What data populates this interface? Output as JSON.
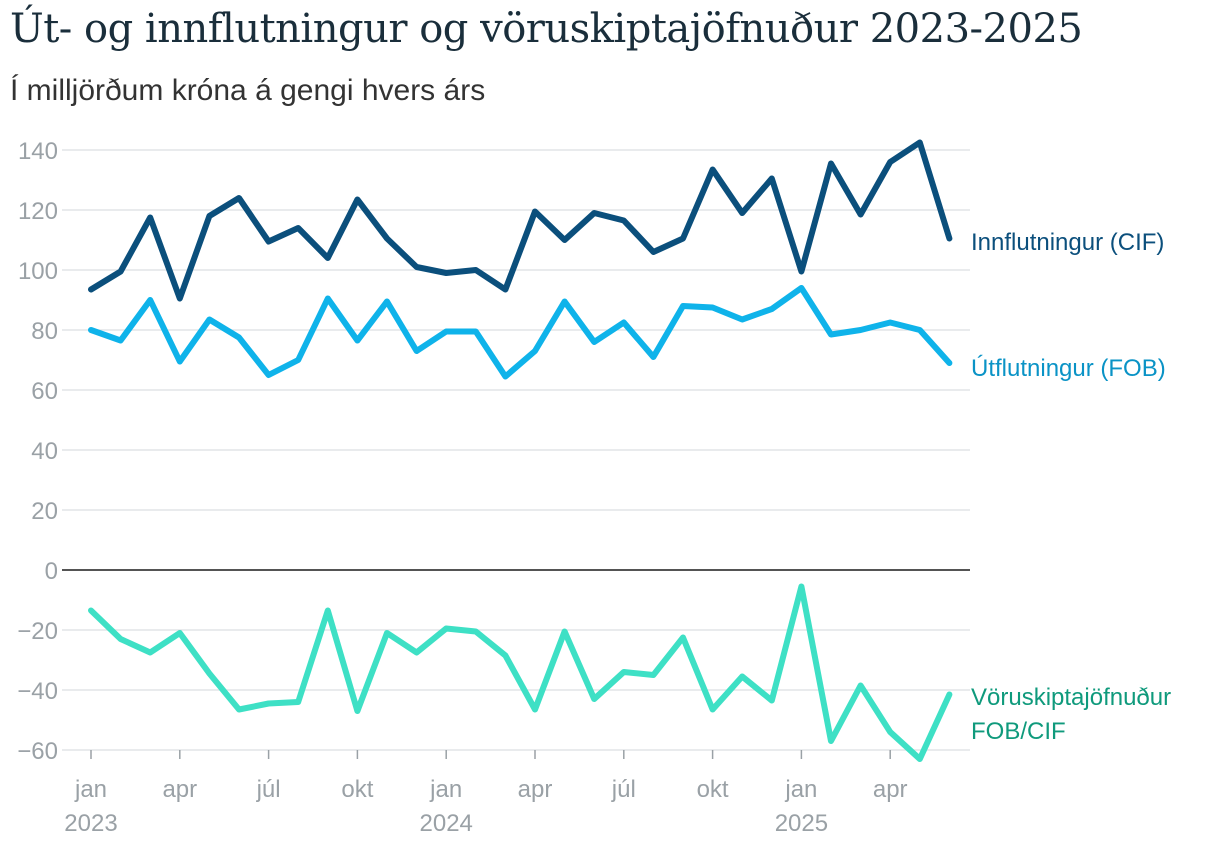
{
  "title": "Út- og innflutningur og vöruskiptajöfnuður 2023-2025",
  "subtitle": "Í milljörðum króna á gengi hvers árs",
  "chart_data": {
    "type": "line",
    "title": "Út- og innflutningur og vöruskiptajöfnuður 2023-2025",
    "subtitle": "Í milljörðum króna á gengi hvers árs",
    "xlabel": "",
    "ylabel": "",
    "ylim": [
      -60,
      140
    ],
    "y_ticks": [
      140,
      120,
      100,
      80,
      60,
      40,
      20,
      0,
      -20,
      -40,
      -60
    ],
    "grid": true,
    "x": [
      "2023-01",
      "2023-02",
      "2023-03",
      "2023-04",
      "2023-05",
      "2023-06",
      "2023-07",
      "2023-08",
      "2023-09",
      "2023-10",
      "2023-11",
      "2023-12",
      "2024-01",
      "2024-02",
      "2024-03",
      "2024-04",
      "2024-05",
      "2024-06",
      "2024-07",
      "2024-08",
      "2024-09",
      "2024-10",
      "2024-11",
      "2024-12",
      "2025-01",
      "2025-02",
      "2025-03",
      "2025-04",
      "2025-05",
      "2025-06"
    ],
    "x_ticks": [
      {
        "index": 0,
        "label": "jan",
        "year": "2023"
      },
      {
        "index": 3,
        "label": "apr",
        "year": ""
      },
      {
        "index": 6,
        "label": "júl",
        "year": ""
      },
      {
        "index": 9,
        "label": "okt",
        "year": ""
      },
      {
        "index": 12,
        "label": "jan",
        "year": "2024"
      },
      {
        "index": 15,
        "label": "apr",
        "year": ""
      },
      {
        "index": 18,
        "label": "júl",
        "year": ""
      },
      {
        "index": 21,
        "label": "okt",
        "year": ""
      },
      {
        "index": 24,
        "label": "jan",
        "year": "2025"
      },
      {
        "index": 27,
        "label": "apr",
        "year": ""
      }
    ],
    "series": [
      {
        "name": "Innflutningur (CIF)",
        "color": "#0b4f7c",
        "label_color": "#0b4f7c",
        "values": [
          93.5,
          99.5,
          117.5,
          90.5,
          118,
          124,
          109.5,
          114,
          104,
          123.5,
          110.5,
          101,
          99,
          100,
          93.5,
          119.5,
          110,
          119,
          116.5,
          106,
          110.5,
          133.5,
          119,
          130.5,
          99.5,
          135.5,
          118.5,
          136,
          142.5,
          110.5
        ]
      },
      {
        "name": "Útflutningur (FOB)",
        "color": "#0fb3ea",
        "label_color": "#0a93c6",
        "values": [
          80,
          76.5,
          90,
          69.5,
          83.5,
          77.5,
          65,
          70,
          90.5,
          76.5,
          89.5,
          73,
          79.5,
          79.5,
          64.5,
          73,
          89.5,
          76,
          82.5,
          71,
          88,
          87.5,
          83.5,
          87,
          94,
          78.5,
          80,
          82.5,
          80,
          69
        ],
        "label_lines": [
          "Útflutningur (FOB)"
        ]
      },
      {
        "name": "Vöruskiptajöfnuður FOB/CIF",
        "color": "#3ee0c5",
        "label_color": "#0f9a7c",
        "values": [
          -13.5,
          -23,
          -27.5,
          -21,
          -34.5,
          -46.5,
          -44.5,
          -44,
          -13.5,
          -47,
          -21,
          -27.5,
          -19.5,
          -20.5,
          -28.5,
          -46.5,
          -20.5,
          -43,
          -34,
          -35,
          -22.5,
          -46.5,
          -35.5,
          -43.5,
          -5.5,
          -57,
          -38.5,
          -54,
          -63,
          -41.5
        ]
      }
    ],
    "series_labels": [
      {
        "lines": [
          "Innflutningur (CIF)"
        ]
      },
      {
        "lines": [
          "Útflutningur (FOB)"
        ]
      },
      {
        "lines": [
          "Vöruskiptajöfnuður",
          "FOB/CIF"
        ]
      }
    ]
  }
}
